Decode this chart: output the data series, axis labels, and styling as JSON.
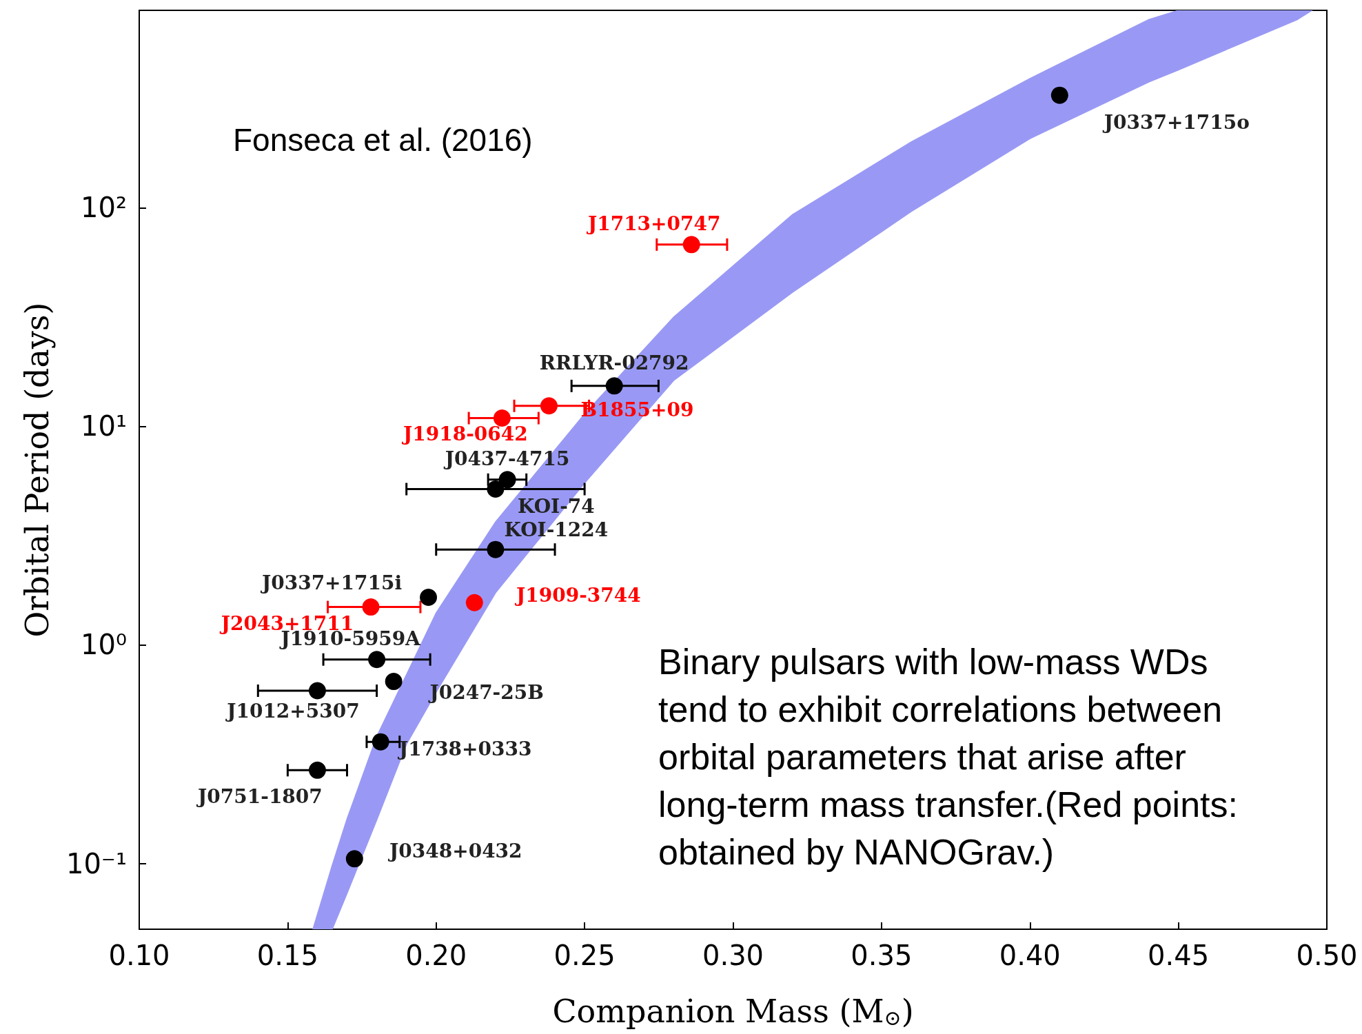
{
  "chart_data": {
    "type": "scatter",
    "xlabel": "Companion Mass (M$_{⊙}$)",
    "ylabel": "Orbital Period (days)",
    "log": "y",
    "xlim": [
      0.1,
      0.5
    ],
    "xticks": [
      {
        "value": 0.1,
        "label": "0.10"
      },
      {
        "value": 0.15,
        "label": "0.15"
      },
      {
        "value": 0.2,
        "label": "0.20"
      },
      {
        "value": 0.25,
        "label": "0.25"
      },
      {
        "value": 0.3,
        "label": "0.30"
      },
      {
        "value": 0.35,
        "label": "0.35"
      },
      {
        "value": 0.4,
        "label": "0.40"
      },
      {
        "value": 0.45,
        "label": "0.45"
      },
      {
        "value": 0.5,
        "label": "0.50"
      }
    ],
    "ylim": [
      0.05,
      800
    ],
    "yticks": [
      {
        "value": 0.1,
        "label": "10⁻¹"
      },
      {
        "value": 1,
        "label": "10⁰"
      },
      {
        "value": 10,
        "label": "10¹"
      },
      {
        "value": 100,
        "label": "10²"
      }
    ],
    "annotations": [
      "Fonseca et al. (2016)",
      "Binary pulsars with low-mass WDs tend to exhibit correlations between orbital parameters that arise after long-term mass transfer.(Red points: obtained by NANOGrav.)"
    ],
    "series": [
      {
        "type": "line",
        "color": "#9999f5",
        "x": [
          0.1585,
          0.165,
          0.17,
          0.18,
          0.19,
          0.2,
          0.22,
          0.25,
          0.28,
          0.32,
          0.36,
          0.4,
          0.44,
          0.45,
          0.49,
          0.495
        ],
        "values": [
          null,
          null,
          null,
          null,
          null,
          null,
          null,
          null,
          null,
          null,
          null,
          null,
          null,
          null,
          null,
          null
        ],
        "upper": [
          0.05,
          0.098,
          0.16,
          0.381,
          0.73,
          1.4,
          3.65,
          11.4,
          31.6,
          93,
          200,
          390,
          725,
          800,
          800,
          800
        ],
        "lower": [
          0.05,
          0.05,
          0.073,
          0.158,
          0.351,
          0.607,
          1.73,
          5.5,
          16.2,
          41,
          96,
          207,
          376,
          427,
          725,
          800
        ]
      },
      {
        "type": "scatter",
        "color": "#000000",
        "marker": "circle",
        "x": [
          0.41,
          0.26,
          0.224,
          0.22,
          0.22,
          0.1974,
          0.18,
          0.1857,
          0.16,
          0.1813,
          0.16,
          0.1725
        ],
        "values": [
          327,
          15.3,
          5.7,
          5.16,
          2.73,
          1.65,
          0.857,
          0.68,
          0.617,
          0.36,
          0.267,
          0.105
        ],
        "xerrors": [
          null,
          [
            0.2456,
            0.2749
          ],
          [
            0.2175,
            0.2304
          ],
          [
            0.19,
            0.25
          ],
          [
            0.2,
            0.24
          ],
          null,
          [
            0.162,
            0.198
          ],
          null,
          [
            0.14,
            0.18
          ],
          [
            0.1766,
            0.1877
          ],
          [
            0.15,
            0.17
          ],
          null
        ],
        "value_labels": [
          "J0337+1715o",
          "RRLYR-02792",
          "J0437-4715",
          "KOI-74",
          "KOI-1224",
          "J0337+1715i",
          "J1910-5959A",
          "J0247-25B",
          "J1012+5307",
          "J1738+0333",
          "J0751-1807",
          "J0348+0432"
        ]
      },
      {
        "type": "scatter",
        "color": "#ff0000",
        "marker": "circle",
        "x": [
          0.286,
          0.238,
          0.2222,
          0.2129,
          0.178
        ],
        "values": [
          67.8,
          12.4,
          10.9,
          1.56,
          1.49
        ],
        "xerrors": [
          [
            0.2743,
            0.298
          ],
          [
            0.2263,
            0.2515
          ],
          [
            0.211,
            0.2345
          ],
          null,
          [
            0.1635,
            0.1947
          ]
        ],
        "value_labels": [
          "J1713+0747",
          "B1855+09",
          "J1918-0642",
          "J1909-3744",
          "J2043+1711"
        ]
      }
    ]
  }
}
